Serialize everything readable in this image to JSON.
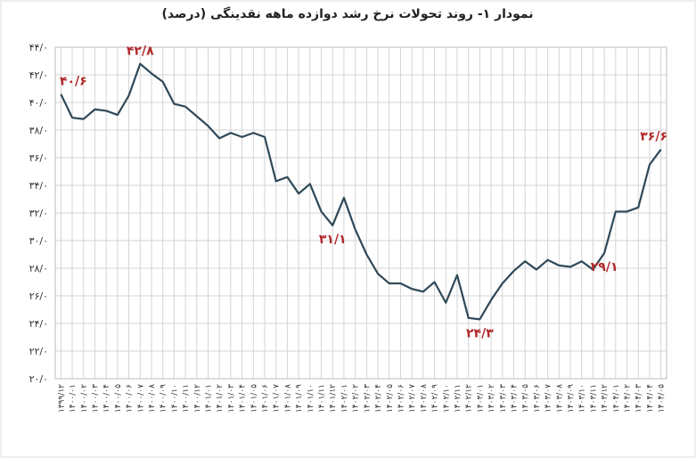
{
  "chart_data": {
    "type": "line",
    "title": "نمودار ۱- روند تحولات نرخ رشد دوازده ماهه نقدینگی (درصد)",
    "categories": [
      "۱۳۹۹/۱۲",
      "۱۴۰۰/۰۱",
      "۱۴۰۰/۰۲",
      "۱۴۰۰/۰۳",
      "۱۴۰۰/۰۴",
      "۱۴۰۰/۰۵",
      "۱۴۰۰/۰۶",
      "۱۴۰۰/۰۷",
      "۱۴۰۰/۰۸",
      "۱۴۰۰/۰۹",
      "۱۴۰۰/۱۰",
      "۱۴۰۰/۱۱",
      "۱۴۰۰/۱۲",
      "۱۴۰۱/۰۱",
      "۱۴۰۱/۰۲",
      "۱۴۰۱/۰۳",
      "۱۴۰۱/۰۴",
      "۱۴۰۱/۰۵",
      "۱۴۰۱/۰۶",
      "۱۴۰۱/۰۷",
      "۱۴۰۱/۰۸",
      "۱۴۰۱/۰۹",
      "۱۴۰۱/۱۰",
      "۱۴۰۱/۱۱",
      "۱۴۰۱/۱۲",
      "۱۴۰۲/۰۱",
      "۱۴۰۲/۰۲",
      "۱۴۰۲/۰۳",
      "۱۴۰۲/۰۴",
      "۱۴۰۲/۰۵",
      "۱۴۰۲/۰۶",
      "۱۴۰۲/۰۷",
      "۱۴۰۲/۰۸",
      "۱۴۰۲/۰۹",
      "۱۴۰۲/۱۰",
      "۱۴۰۲/۱۱",
      "۱۴۰۲/۱۲",
      "۱۴۰۳/۰۱",
      "۱۴۰۳/۰۲",
      "۱۴۰۳/۰۳",
      "۱۴۰۳/۰۴",
      "۱۴۰۳/۰۵",
      "۱۴۰۳/۰۶",
      "۱۴۰۳/۰۷",
      "۱۴۰۳/۰۸",
      "۱۴۰۳/۰۹",
      "۱۴۰۳/۱۰",
      "۱۴۰۳/۱۱",
      "۱۴۰۳/۱۲",
      "۱۴۰۴/۰۱",
      "۱۴۰۴/۰۲",
      "۱۴۰۴/۰۳",
      "۱۴۰۴/۰۴",
      "۱۴۰۴/۰۵"
    ],
    "series": [
      {
        "color": "#2f4858",
        "values": [
          40.6,
          38.9,
          38.8,
          39.5,
          39.4,
          39.1,
          40.5,
          42.8,
          42.1,
          41.5,
          39.9,
          39.7,
          39.0,
          38.3,
          37.4,
          37.8,
          37.5,
          37.8,
          37.5,
          34.3,
          34.6,
          33.4,
          34.1,
          32.1,
          31.1,
          33.1,
          30.8,
          29.0,
          27.6,
          26.9,
          26.9,
          26.5,
          26.3,
          27.0,
          25.5,
          27.5,
          24.4,
          24.3,
          25.7,
          26.9,
          27.8,
          28.5,
          27.9,
          28.6,
          28.2,
          28.1,
          28.5,
          27.9,
          29.1,
          32.1,
          32.1,
          32.4,
          35.5,
          36.6
        ],
        "value_labels": [
          "۴۰/۶",
          null,
          null,
          null,
          null,
          null,
          null,
          "۴۲/۸",
          null,
          null,
          null,
          null,
          null,
          null,
          null,
          null,
          null,
          null,
          null,
          null,
          null,
          null,
          null,
          null,
          "۳۱/۱",
          null,
          null,
          null,
          null,
          null,
          null,
          null,
          null,
          null,
          null,
          null,
          null,
          "۲۴/۳",
          null,
          null,
          null,
          null,
          null,
          null,
          null,
          null,
          null,
          null,
          "۲۹/۱",
          null,
          null,
          null,
          null,
          "۳۶/۶"
        ],
        "label_color": "#b0282a"
      }
    ],
    "ylim": [
      20,
      44
    ],
    "yticks": [
      {
        "value": 20,
        "label": "۲۰/۰"
      },
      {
        "value": 22,
        "label": "۲۲/۰"
      },
      {
        "value": 24,
        "label": "۲۴/۰"
      },
      {
        "value": 26,
        "label": "۲۶/۰"
      },
      {
        "value": 28,
        "label": "۲۸/۰"
      },
      {
        "value": 30,
        "label": "۳۰/۰"
      },
      {
        "value": 32,
        "label": "۳۲/۰"
      },
      {
        "value": 34,
        "label": "۳۴/۰"
      },
      {
        "value": 36,
        "label": "۳۶/۰"
      },
      {
        "value": 38,
        "label": "۳۸/۰"
      },
      {
        "value": 40,
        "label": "۴۰/۰"
      },
      {
        "value": 42,
        "label": "۴۲/۰"
      },
      {
        "value": 44,
        "label": "۴۴/۰"
      }
    ],
    "grid": true
  }
}
